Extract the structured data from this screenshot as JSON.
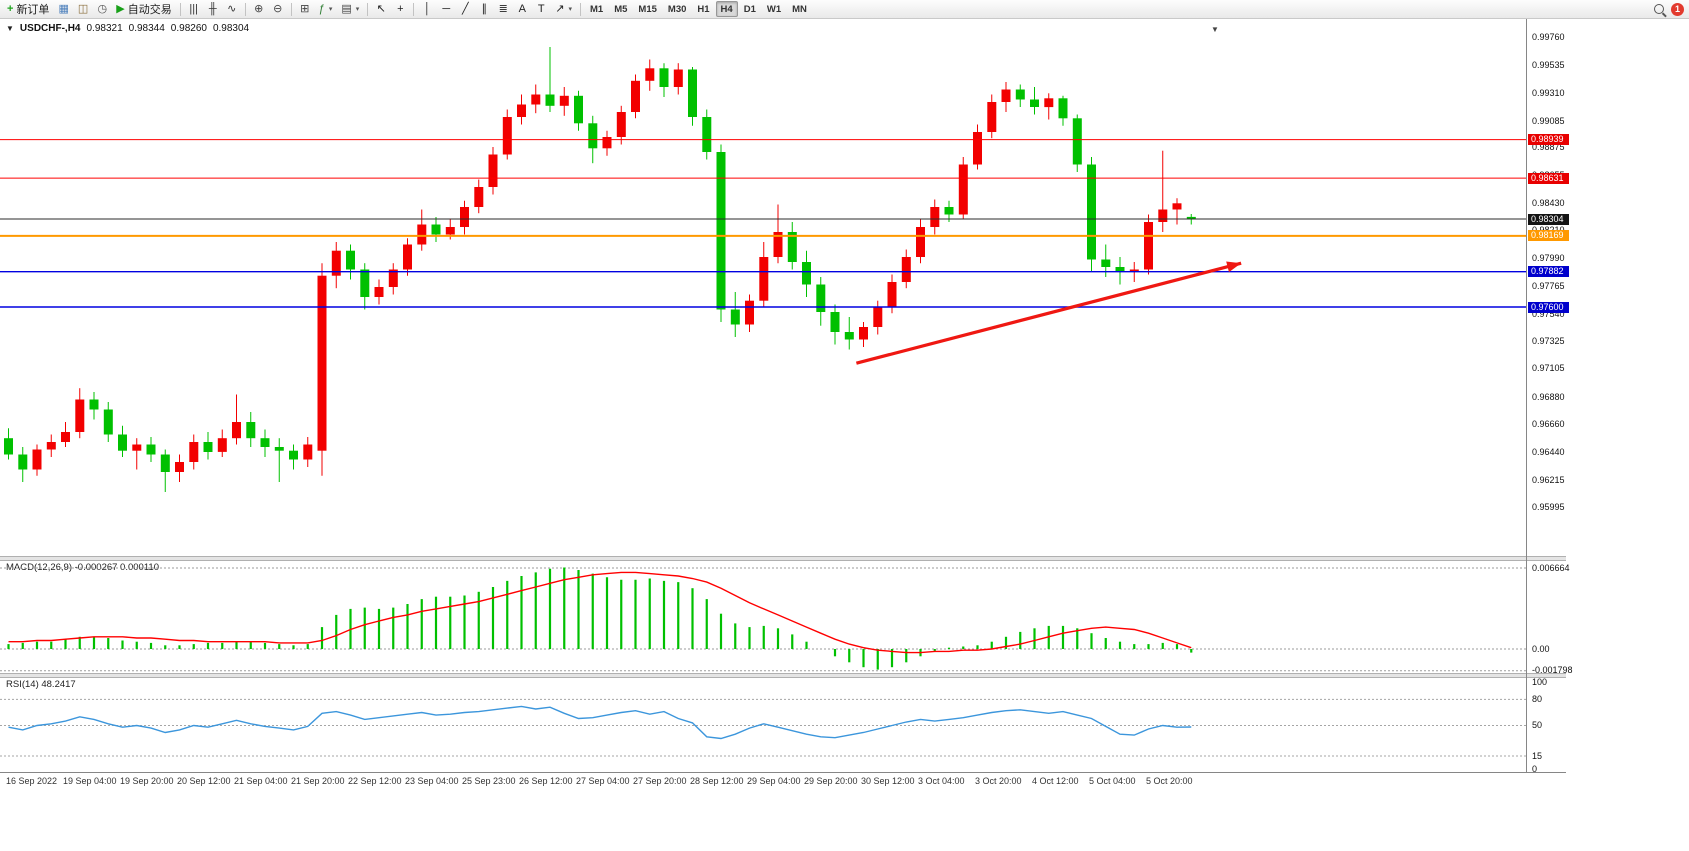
{
  "toolbar": {
    "new_order_label": "新订单",
    "auto_trading_label": "自动交易",
    "notification_count": "1",
    "timeframes": [
      "M1",
      "M5",
      "M15",
      "M30",
      "H1",
      "H4",
      "D1",
      "W1",
      "MN"
    ],
    "active_timeframe": "H4",
    "left_icons": [
      {
        "name": "chart-window-icon",
        "glyph": "▦",
        "color": "#4a7ebb"
      },
      {
        "name": "profiles-icon",
        "glyph": "◫",
        "color": "#8a6d3b"
      },
      {
        "name": "history-icon",
        "glyph": "◷",
        "color": "#555555"
      }
    ],
    "tool_icons": [
      {
        "sep": true
      },
      {
        "name": "bar-chart-icon",
        "glyph": "|||",
        "color": "#333333"
      },
      {
        "name": "candlestick-icon",
        "glyph": "╫",
        "color": "#333333"
      },
      {
        "name": "line-chart-icon",
        "glyph": "∿",
        "color": "#333333"
      },
      {
        "sep": true
      },
      {
        "name": "zoom-in-icon",
        "glyph": "⊕",
        "color": "#444444"
      },
      {
        "name": "zoom-out-icon",
        "glyph": "⊖",
        "color": "#444444"
      },
      {
        "sep": true
      },
      {
        "name": "tile-windows-icon",
        "glyph": "⊞",
        "color": "#444444"
      },
      {
        "name": "indicators-icon",
        "glyph": "ƒ",
        "color": "#2e7d32",
        "caret": true
      },
      {
        "name": "templates-icon",
        "glyph": "▤",
        "color": "#444444",
        "caret": true
      },
      {
        "sep": true
      },
      {
        "name": "cursor-icon",
        "glyph": "↖",
        "color": "#222222"
      },
      {
        "name": "crosshair-icon",
        "glyph": "+",
        "color": "#222222"
      },
      {
        "sep": true
      },
      {
        "name": "vertical-line-icon",
        "glyph": "│",
        "color": "#222222"
      },
      {
        "name": "horizontal-line-icon",
        "glyph": "─",
        "color": "#222222"
      },
      {
        "name": "trendline-icon",
        "glyph": "╱",
        "color": "#222222"
      },
      {
        "name": "channel-icon",
        "glyph": "∥",
        "color": "#222222"
      },
      {
        "name": "fibonacci-icon",
        "glyph": "≣",
        "color": "#222222"
      },
      {
        "name": "text-icon",
        "glyph": "A",
        "color": "#222222"
      },
      {
        "name": "text-label-icon",
        "glyph": "T",
        "color": "#222222"
      },
      {
        "name": "arrows-icon",
        "glyph": "↗",
        "color": "#222222",
        "caret": true
      },
      {
        "sep": true
      }
    ]
  },
  "icons": {
    "caret": "▾",
    "one_click": "▼",
    "shift_marker": "▼",
    "play": "▶",
    "plus": "+"
  },
  "header": {
    "title": "USDCHF-,H4",
    "open": "0.98321",
    "high": "0.98344",
    "low": "0.98260",
    "close": "0.98304"
  },
  "indicators": {
    "macd": "MACD(12,26,9) -0.000267 0.000110",
    "rsi": "RSI(14) 48.2417"
  },
  "chart_data": [
    {
      "type": "candlestick",
      "symbol": "USDCHF-",
      "timeframe": "H4",
      "title": "USDCHF-,H4",
      "current_ohlc": {
        "open": 0.98321,
        "high": 0.98344,
        "low": 0.9826,
        "close": 0.98304
      },
      "up_color": "#f20000",
      "down_color": "#00c000",
      "ylim": [
        0.956,
        0.99872
      ],
      "y_tick_labels": [
        "0.99760",
        "0.99535",
        "0.99310",
        "0.99085",
        "0.98875",
        "0.98655",
        "0.98430",
        "0.98210",
        "0.97990",
        "0.97765",
        "0.97540",
        "0.97325",
        "0.97105",
        "0.96880",
        "0.96660",
        "0.96440",
        "0.96215",
        "0.95995"
      ],
      "x_tick_labels": [
        "16 Sep 2022",
        "19 Sep 04:00",
        "19 Sep 20:00",
        "20 Sep 12:00",
        "21 Sep 04:00",
        "21 Sep 20:00",
        "22 Sep 12:00",
        "23 Sep 04:00",
        "25 Sep 23:00",
        "26 Sep 12:00",
        "27 Sep 04:00",
        "27 Sep 20:00",
        "28 Sep 12:00",
        "29 Sep 04:00",
        "29 Sep 20:00",
        "30 Sep 12:00",
        "3 Oct 04:00",
        "3 Oct 20:00",
        "4 Oct 12:00",
        "5 Oct 04:00",
        "5 Oct 20:00"
      ],
      "candles_ohlc": [
        [
          0.9655,
          0.9663,
          0.9638,
          0.9642
        ],
        [
          0.9642,
          0.9648,
          0.962,
          0.963
        ],
        [
          0.963,
          0.965,
          0.9625,
          0.9646
        ],
        [
          0.9646,
          0.9658,
          0.964,
          0.9652
        ],
        [
          0.9652,
          0.9668,
          0.9648,
          0.966
        ],
        [
          0.966,
          0.9695,
          0.9655,
          0.9686
        ],
        [
          0.9686,
          0.9692,
          0.967,
          0.9678
        ],
        [
          0.9678,
          0.9684,
          0.9652,
          0.9658
        ],
        [
          0.9658,
          0.9665,
          0.964,
          0.9645
        ],
        [
          0.9645,
          0.9655,
          0.963,
          0.965
        ],
        [
          0.965,
          0.9656,
          0.9636,
          0.9642
        ],
        [
          0.9642,
          0.9646,
          0.9612,
          0.9628
        ],
        [
          0.9628,
          0.9642,
          0.962,
          0.9636
        ],
        [
          0.9636,
          0.9658,
          0.963,
          0.9652
        ],
        [
          0.9652,
          0.966,
          0.9638,
          0.9644
        ],
        [
          0.9644,
          0.9662,
          0.964,
          0.9655
        ],
        [
          0.9655,
          0.969,
          0.965,
          0.9668
        ],
        [
          0.9668,
          0.9676,
          0.9648,
          0.9655
        ],
        [
          0.9655,
          0.9662,
          0.964,
          0.9648
        ],
        [
          0.9648,
          0.9655,
          0.962,
          0.9645
        ],
        [
          0.9645,
          0.965,
          0.963,
          0.9638
        ],
        [
          0.9638,
          0.9656,
          0.9632,
          0.965
        ],
        [
          0.9645,
          0.9795,
          0.9625,
          0.9785
        ],
        [
          0.9785,
          0.9812,
          0.9775,
          0.9805
        ],
        [
          0.9805,
          0.981,
          0.9782,
          0.979
        ],
        [
          0.979,
          0.9795,
          0.9758,
          0.9768
        ],
        [
          0.9768,
          0.9782,
          0.9762,
          0.9776
        ],
        [
          0.9776,
          0.9795,
          0.977,
          0.979
        ],
        [
          0.979,
          0.9815,
          0.9785,
          0.981
        ],
        [
          0.981,
          0.9838,
          0.9805,
          0.9826
        ],
        [
          0.9826,
          0.9832,
          0.9812,
          0.9818
        ],
        [
          0.9818,
          0.983,
          0.9814,
          0.9824
        ],
        [
          0.9824,
          0.9845,
          0.9818,
          0.984
        ],
        [
          0.984,
          0.9862,
          0.9835,
          0.9856
        ],
        [
          0.9856,
          0.9888,
          0.985,
          0.9882
        ],
        [
          0.9882,
          0.9918,
          0.9878,
          0.9912
        ],
        [
          0.9912,
          0.993,
          0.9906,
          0.9922
        ],
        [
          0.9922,
          0.9938,
          0.9915,
          0.993
        ],
        [
          0.993,
          0.9968,
          0.9916,
          0.9921
        ],
        [
          0.9921,
          0.9936,
          0.9913,
          0.9929
        ],
        [
          0.9929,
          0.9933,
          0.9901,
          0.9907
        ],
        [
          0.9907,
          0.9913,
          0.9875,
          0.9887
        ],
        [
          0.9887,
          0.9901,
          0.9881,
          0.9896
        ],
        [
          0.9896,
          0.9921,
          0.989,
          0.9916
        ],
        [
          0.9916,
          0.9946,
          0.9911,
          0.9941
        ],
        [
          0.9941,
          0.9958,
          0.9933,
          0.9951
        ],
        [
          0.9951,
          0.9955,
          0.9928,
          0.9936
        ],
        [
          0.9936,
          0.9955,
          0.993,
          0.995
        ],
        [
          0.995,
          0.9952,
          0.9905,
          0.9912
        ],
        [
          0.9912,
          0.9918,
          0.9878,
          0.9884
        ],
        [
          0.9884,
          0.989,
          0.9748,
          0.9758
        ],
        [
          0.9758,
          0.9772,
          0.9736,
          0.9746
        ],
        [
          0.9746,
          0.977,
          0.974,
          0.9765
        ],
        [
          0.9765,
          0.9812,
          0.976,
          0.98
        ],
        [
          0.98,
          0.9842,
          0.9795,
          0.982
        ],
        [
          0.982,
          0.9828,
          0.979,
          0.9796
        ],
        [
          0.9796,
          0.9805,
          0.9768,
          0.9778
        ],
        [
          0.9778,
          0.9784,
          0.9745,
          0.9756
        ],
        [
          0.9756,
          0.9762,
          0.973,
          0.974
        ],
        [
          0.974,
          0.9752,
          0.9726,
          0.9734
        ],
        [
          0.9734,
          0.9748,
          0.9728,
          0.9744
        ],
        [
          0.9744,
          0.9765,
          0.9738,
          0.976
        ],
        [
          0.976,
          0.9786,
          0.9755,
          0.978
        ],
        [
          0.978,
          0.9806,
          0.9775,
          0.98
        ],
        [
          0.98,
          0.983,
          0.9795,
          0.9824
        ],
        [
          0.9824,
          0.9846,
          0.9818,
          0.984
        ],
        [
          0.984,
          0.9845,
          0.9828,
          0.9834
        ],
        [
          0.9834,
          0.988,
          0.983,
          0.9874
        ],
        [
          0.9874,
          0.9906,
          0.987,
          0.99
        ],
        [
          0.99,
          0.993,
          0.9895,
          0.9924
        ],
        [
          0.9924,
          0.994,
          0.9916,
          0.9934
        ],
        [
          0.9934,
          0.9938,
          0.992,
          0.9926
        ],
        [
          0.9926,
          0.9936,
          0.9914,
          0.992
        ],
        [
          0.992,
          0.9931,
          0.991,
          0.9927
        ],
        [
          0.9927,
          0.9929,
          0.9905,
          0.9911
        ],
        [
          0.9911,
          0.9914,
          0.9868,
          0.9874
        ],
        [
          0.9874,
          0.988,
          0.9788,
          0.9798
        ],
        [
          0.9798,
          0.981,
          0.9784,
          0.9792
        ],
        [
          0.9792,
          0.98,
          0.9778,
          0.9788
        ],
        [
          0.9788,
          0.9796,
          0.978,
          0.979
        ],
        [
          0.979,
          0.9834,
          0.9786,
          0.9828
        ],
        [
          0.9828,
          0.9885,
          0.982,
          0.9838
        ],
        [
          0.9838,
          0.9847,
          0.9826,
          0.9843
        ],
        [
          0.98321,
          0.98344,
          0.9826,
          0.98304
        ]
      ],
      "price_lines": [
        {
          "price": 0.98939,
          "color": "#ff0000",
          "width": 1,
          "label": "0.98939",
          "label_bg": "#e80000"
        },
        {
          "price": 0.98631,
          "color": "#ff0000",
          "width": 1,
          "label": "0.98631",
          "label_bg": "#e80000"
        },
        {
          "price": 0.98304,
          "color": "#2b2b2b",
          "width": 1,
          "label": "0.98304",
          "label_bg": "#141414",
          "current": true
        },
        {
          "price": 0.98169,
          "color": "#ff9900",
          "width": 2,
          "label": "0.98169",
          "label_bg": "#ff9900"
        },
        {
          "price": 0.97882,
          "color": "#0000e0",
          "width": 1.4,
          "label": "0.97882",
          "label_bg": "#0000cc"
        },
        {
          "price": 0.976,
          "color": "#0000e0",
          "width": 1.4,
          "label": "0.97600",
          "label_bg": "#0000cc"
        }
      ],
      "bid_price": 0.98304,
      "trend_arrow": {
        "from": {
          "index": 59.5,
          "price": 0.9715
        },
        "to": {
          "index": 86.5,
          "price": 0.9795
        },
        "color": "#ef1812"
      }
    },
    {
      "type": "bar",
      "name": "MACD(12,26,9)",
      "label": "MACD(12,26,9) -0.000267 0.000110",
      "current_values": [
        "-0.000267",
        "0.000110"
      ],
      "histogram_color": "#00c000",
      "signal_color": "#ff0000",
      "ylim": [
        -0.00206,
        0.00732
      ],
      "y_labels": [
        "0.006664",
        "0.00",
        "-0.001798"
      ],
      "y_label_values": [
        0.006664,
        0,
        -0.001798
      ],
      "histogram": [
        0.0004,
        0.0005,
        0.0006,
        0.0006,
        0.0008,
        0.001,
        0.001,
        0.0009,
        0.0007,
        0.0006,
        0.0005,
        0.0003,
        0.0003,
        0.0004,
        0.0005,
        0.0005,
        0.0006,
        0.0006,
        0.0005,
        0.0004,
        0.0003,
        0.0004,
        0.0018,
        0.0028,
        0.0033,
        0.0034,
        0.0033,
        0.0034,
        0.0037,
        0.0041,
        0.0043,
        0.0043,
        0.0044,
        0.0047,
        0.0051,
        0.0056,
        0.006,
        0.0063,
        0.0066,
        0.0067,
        0.0065,
        0.0062,
        0.0059,
        0.0057,
        0.0057,
        0.0058,
        0.0056,
        0.0055,
        0.005,
        0.0041,
        0.0029,
        0.0021,
        0.0018,
        0.0019,
        0.0017,
        0.0012,
        0.0006,
        0.0,
        -0.0006,
        -0.0011,
        -0.0015,
        -0.0017,
        -0.0015,
        -0.0011,
        -0.0006,
        -0.0002,
        0.0001,
        0.0002,
        0.0003,
        0.0006,
        0.001,
        0.0014,
        0.0017,
        0.0019,
        0.0019,
        0.0017,
        0.0013,
        0.0009,
        0.0006,
        0.0004,
        0.0004,
        0.0005,
        0.0004,
        -0.0003
      ],
      "signal": [
        0.0006,
        0.0006,
        0.0007,
        0.0007,
        0.0008,
        0.0009,
        0.001,
        0.001,
        0.001,
        0.0009,
        0.0009,
        0.0008,
        0.0007,
        0.0007,
        0.0006,
        0.0006,
        0.0006,
        0.0006,
        0.0006,
        0.0005,
        0.0005,
        0.0005,
        0.0007,
        0.0011,
        0.0016,
        0.002,
        0.0023,
        0.0026,
        0.0028,
        0.0031,
        0.0033,
        0.0035,
        0.0037,
        0.0039,
        0.0042,
        0.0045,
        0.0048,
        0.0051,
        0.0054,
        0.0057,
        0.0059,
        0.0061,
        0.0062,
        0.0063,
        0.0063,
        0.0062,
        0.0061,
        0.006,
        0.0058,
        0.0055,
        0.005,
        0.0044,
        0.0038,
        0.0033,
        0.0028,
        0.0023,
        0.0018,
        0.0013,
        0.0008,
        0.0004,
        0.0001,
        -0.0001,
        -0.0002,
        -0.0003,
        -0.0003,
        -0.0002,
        -0.0002,
        -0.0001,
        -0.0001,
        0.0,
        0.0002,
        0.0004,
        0.0007,
        0.001,
        0.0013,
        0.0015,
        0.0017,
        0.0018,
        0.0017,
        0.0016,
        0.0013,
        0.0009,
        0.0005,
        0.0001
      ]
    },
    {
      "type": "line",
      "name": "RSI(14)",
      "label": "RSI(14) 48.2417",
      "current_value": "48.2417",
      "line_color": "#3c96dc",
      "levels": [
        80,
        50,
        15
      ],
      "y_labels": [
        "100",
        "80",
        "50",
        "15",
        "0"
      ],
      "y_label_values": [
        100,
        80,
        50,
        15,
        0
      ],
      "ylim": [
        0,
        100
      ],
      "values": [
        48,
        45,
        50,
        52,
        55,
        60,
        57,
        52,
        48,
        50,
        47,
        42,
        45,
        50,
        48,
        52,
        56,
        52,
        49,
        47,
        45,
        49,
        64,
        66,
        62,
        57,
        59,
        61,
        63,
        65,
        62,
        63,
        65,
        66,
        68,
        70,
        72,
        69,
        71,
        64,
        58,
        59,
        62,
        65,
        67,
        63,
        66,
        58,
        53,
        37,
        35,
        40,
        47,
        52,
        48,
        44,
        40,
        37,
        36,
        39,
        42,
        46,
        50,
        54,
        57,
        55,
        57,
        59,
        62,
        65,
        67,
        68,
        66,
        64,
        66,
        62,
        58,
        49,
        40,
        39,
        46,
        50,
        48,
        48.24
      ]
    }
  ]
}
